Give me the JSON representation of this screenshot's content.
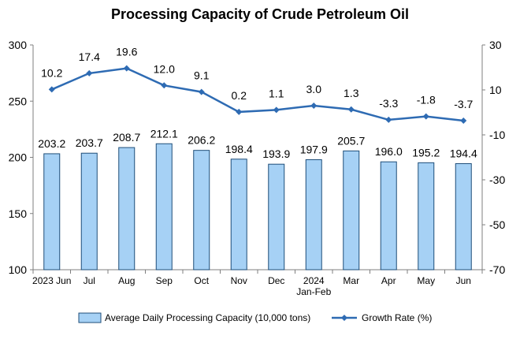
{
  "chart_data": {
    "type": "bar+line",
    "title": "Processing Capacity of Crude Petroleum Oil",
    "categories": [
      [
        "2023 Jun"
      ],
      [
        "Jul"
      ],
      [
        "Aug"
      ],
      [
        "Sep"
      ],
      [
        "Oct"
      ],
      [
        "Nov"
      ],
      [
        "Dec"
      ],
      [
        "2024",
        "Jan-Feb"
      ],
      [
        "Mar"
      ],
      [
        "Apr"
      ],
      [
        "May"
      ],
      [
        "Jun"
      ]
    ],
    "series": [
      {
        "name": "Average Daily Processing Capacity (10,000 tons)",
        "type": "bar",
        "axis": "left",
        "values": [
          203.2,
          203.7,
          208.7,
          212.1,
          206.2,
          198.4,
          193.9,
          197.9,
          205.7,
          196.0,
          195.2,
          194.4
        ],
        "labels": [
          "203.2",
          "203.7",
          "208.7",
          "212.1",
          "206.2",
          "198.4",
          "193.9",
          "197.9",
          "205.7",
          "196.0",
          "195.2",
          "194.4"
        ],
        "color": "#a6d1f5",
        "stroke": "#1f4e79"
      },
      {
        "name": "Growth Rate (%)",
        "type": "line",
        "axis": "right",
        "values": [
          10.2,
          17.4,
          19.6,
          12.0,
          9.1,
          0.2,
          1.1,
          3.0,
          1.3,
          -3.3,
          -1.8,
          -3.7
        ],
        "labels": [
          "10.2",
          "17.4",
          "19.6",
          "12.0",
          "9.1",
          "0.2",
          "1.1",
          "3.0",
          "1.3",
          "-3.3",
          "-1.8",
          "-3.7"
        ],
        "color": "#2e6bb3"
      }
    ],
    "y_left": {
      "ylim": [
        100,
        300
      ],
      "ticks": [
        100,
        150,
        200,
        250,
        300
      ]
    },
    "y_right": {
      "ylim": [
        -70,
        30
      ],
      "ticks": [
        -70,
        -50,
        -30,
        -10,
        10,
        30
      ]
    },
    "grid": false,
    "legend_position": "bottom"
  }
}
